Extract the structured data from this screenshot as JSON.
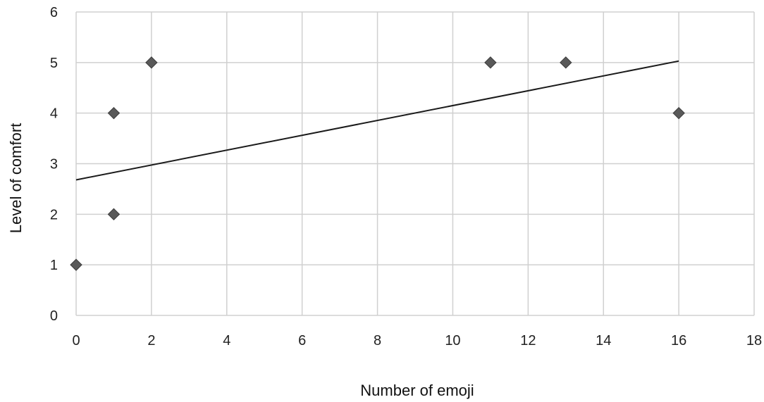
{
  "chart_data": {
    "type": "scatter",
    "title": "",
    "xlabel": "Number of emoji",
    "ylabel": "Level of comfort",
    "xlim": [
      0,
      18
    ],
    "ylim": [
      0,
      6
    ],
    "x_ticks": [
      0,
      2,
      4,
      6,
      8,
      10,
      12,
      14,
      16,
      18
    ],
    "y_ticks": [
      0,
      1,
      2,
      3,
      4,
      5,
      6
    ],
    "grid": true,
    "legend": "none",
    "marker": "diamond",
    "colors": {
      "marker": "#595959",
      "trendline": "#1a1a1a",
      "grid": "#d0d0d0"
    },
    "series": [
      {
        "points": [
          {
            "x": 0,
            "y": 1
          },
          {
            "x": 1,
            "y": 2
          },
          {
            "x": 1,
            "y": 4
          },
          {
            "x": 2,
            "y": 5
          },
          {
            "x": 11,
            "y": 5
          },
          {
            "x": 13,
            "y": 5
          },
          {
            "x": 16,
            "y": 4
          }
        ]
      }
    ],
    "trendline": {
      "type": "linear",
      "x_start": 0,
      "y_start": 2.68,
      "x_end": 16,
      "y_end": 5.03
    }
  }
}
